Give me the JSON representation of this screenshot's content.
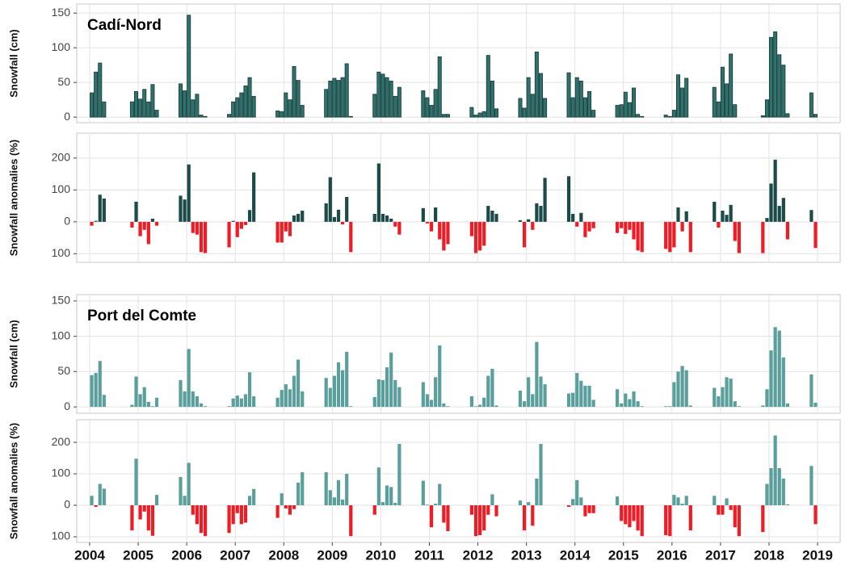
{
  "chart_data": [
    {
      "type": "bar",
      "title": "Cadí-Nord",
      "y_label": "Snowfall (cm)",
      "color": "#2f716c",
      "edgecolor": "#173836",
      "grid": true,
      "categories": [
        "2004",
        "2005",
        "2006",
        "2007",
        "2008",
        "2009",
        "2010",
        "2011",
        "2012",
        "2013",
        "2014",
        "2015",
        "2016",
        "2017",
        "2018",
        "2019"
      ],
      "ylim": [
        -8,
        163
      ],
      "yticks": [
        0,
        50,
        100,
        150
      ],
      "series": [
        {
          "values": [
            null,
            22,
            48,
            4,
            9,
            40,
            33,
            38,
            14,
            27,
            64,
            17,
            3,
            43,
            2,
            35
          ]
        },
        {
          "values": [
            null,
            37,
            38,
            22,
            8,
            52,
            65,
            28,
            3,
            13,
            28,
            18,
            1,
            22,
            25,
            4
          ]
        },
        {
          "values": [
            35,
            26,
            147,
            28,
            35,
            56,
            62,
            17,
            6,
            57,
            57,
            36,
            10,
            72,
            115,
            null
          ]
        },
        {
          "values": [
            65,
            40,
            25,
            35,
            25,
            53,
            57,
            40,
            8,
            33,
            52,
            21,
            61,
            48,
            123,
            null
          ]
        },
        {
          "values": [
            78,
            22,
            33,
            45,
            73,
            57,
            52,
            87,
            89,
            94,
            28,
            42,
            42,
            91,
            90,
            null
          ]
        },
        {
          "values": [
            22,
            47,
            3,
            57,
            53,
            77,
            30,
            4,
            52,
            63,
            37,
            4,
            56,
            18,
            75,
            null
          ]
        },
        {
          "values": [
            null,
            10,
            1,
            30,
            17,
            1,
            43,
            4,
            12,
            27,
            10,
            1,
            null,
            null,
            5,
            null
          ]
        }
      ]
    },
    {
      "type": "bar",
      "y_label": "Snowfall anomalies (%)",
      "color": "#1b4a48",
      "negative_color": "#ee1c25",
      "grid": true,
      "categories": [
        "2004",
        "2005",
        "2006",
        "2007",
        "2008",
        "2009",
        "2010",
        "2011",
        "2012",
        "2013",
        "2014",
        "2015",
        "2016",
        "2017",
        "2018",
        "2019"
      ],
      "ylim": [
        -127,
        278
      ],
      "yticks": [
        {
          "value": -100,
          "label": "100"
        },
        0,
        100,
        200
      ],
      "series": [
        {
          "values": [
            null,
            -18,
            82,
            -80,
            -65,
            58,
            25,
            43,
            -45,
            5,
            143,
            -35,
            -85,
            63,
            -98,
            37
          ]
        },
        {
          "values": [
            null,
            63,
            70,
            3,
            -65,
            140,
            183,
            -5,
            -98,
            -80,
            25,
            -20,
            -95,
            -18,
            12,
            -82
          ]
        },
        {
          "values": [
            -12,
            -45,
            180,
            -48,
            -30,
            15,
            25,
            -30,
            -90,
            8,
            -15,
            -38,
            -80,
            35,
            120,
            null
          ]
        },
        {
          "values": [
            3,
            -25,
            -35,
            -22,
            -45,
            38,
            20,
            45,
            -75,
            -25,
            28,
            -25,
            45,
            22,
            195,
            null
          ]
        },
        {
          "values": [
            85,
            -70,
            -40,
            -10,
            20,
            -8,
            10,
            -55,
            50,
            58,
            -48,
            -55,
            -30,
            53,
            50,
            null
          ]
        },
        {
          "values": [
            73,
            10,
            -95,
            37,
            25,
            78,
            -15,
            -90,
            35,
            50,
            -30,
            -90,
            33,
            -60,
            75,
            null
          ]
        },
        {
          "values": [
            null,
            -12,
            -98,
            155,
            35,
            -95,
            -40,
            -70,
            25,
            138,
            -20,
            -95,
            -95,
            -98,
            -55,
            null
          ]
        }
      ]
    },
    {
      "type": "bar",
      "title": "Port del Comte",
      "y_label": "Snowfall (cm)",
      "color": "#5b9f9d",
      "grid": true,
      "categories": [
        "2004",
        "2005",
        "2006",
        "2007",
        "2008",
        "2009",
        "2010",
        "2011",
        "2012",
        "2013",
        "2014",
        "2015",
        "2016",
        "2017",
        "2018",
        "2019"
      ],
      "ylim": [
        -9,
        159
      ],
      "yticks": [
        0,
        50,
        100,
        150
      ],
      "series": [
        {
          "values": [
            null,
            3,
            38,
            1,
            13,
            41,
            14,
            35,
            15,
            23,
            19,
            25,
            1,
            27,
            2,
            46
          ]
        },
        {
          "values": [
            null,
            43,
            22,
            12,
            24,
            27,
            39,
            18,
            1,
            8,
            20,
            5,
            1,
            15,
            25,
            6
          ]
        },
        {
          "values": [
            45,
            18,
            82,
            16,
            32,
            44,
            38,
            10,
            3,
            42,
            48,
            19,
            35,
            28,
            80,
            null
          ]
        },
        {
          "values": [
            48,
            28,
            22,
            12,
            25,
            63,
            56,
            42,
            13,
            18,
            37,
            11,
            50,
            42,
            113,
            null
          ]
        },
        {
          "values": [
            65,
            7,
            15,
            18,
            44,
            52,
            77,
            87,
            44,
            92,
            30,
            22,
            58,
            40,
            108,
            null
          ]
        },
        {
          "values": [
            17,
            1,
            5,
            49,
            67,
            78,
            38,
            5,
            54,
            43,
            30,
            8,
            52,
            8,
            70,
            null
          ]
        },
        {
          "values": [
            null,
            13,
            1,
            15,
            22,
            1,
            28,
            1,
            2,
            32,
            10,
            1,
            2,
            1,
            5,
            null
          ]
        }
      ]
    },
    {
      "type": "bar",
      "y_label": "Snowfall anomalies (%)",
      "color": "#5b9f9d",
      "negative_color": "#ee1c25",
      "grid": true,
      "categories": [
        "2004",
        "2005",
        "2006",
        "2007",
        "2008",
        "2009",
        "2010",
        "2011",
        "2012",
        "2013",
        "2014",
        "2015",
        "2016",
        "2017",
        "2018",
        "2019"
      ],
      "ylim": [
        -118,
        272
      ],
      "yticks": [
        {
          "value": -100,
          "label": "100"
        },
        0,
        100,
        200
      ],
      "series": [
        {
          "values": [
            null,
            -80,
            90,
            -88,
            -40,
            105,
            -30,
            78,
            -30,
            15,
            -5,
            28,
            -95,
            30,
            -85,
            125
          ]
        },
        {
          "values": [
            null,
            148,
            30,
            -60,
            38,
            48,
            120,
            2,
            -98,
            -80,
            20,
            -50,
            -98,
            -30,
            68,
            -60
          ]
        },
        {
          "values": [
            30,
            -45,
            135,
            -25,
            -10,
            25,
            10,
            -70,
            -95,
            10,
            80,
            -60,
            33,
            -30,
            118,
            null
          ]
        },
        {
          "values": [
            -5,
            -20,
            -30,
            -60,
            -30,
            80,
            63,
            5,
            -80,
            -65,
            25,
            -70,
            25,
            22,
            222,
            null
          ]
        },
        {
          "values": [
            68,
            -80,
            -60,
            -55,
            -12,
            18,
            58,
            68,
            -30,
            85,
            -35,
            -50,
            5,
            -15,
            118,
            null
          ]
        },
        {
          "values": [
            53,
            -97,
            -88,
            30,
            72,
            100,
            8,
            -55,
            35,
            195,
            -25,
            -80,
            30,
            -70,
            85,
            null
          ]
        },
        {
          "values": [
            null,
            33,
            -98,
            52,
            105,
            -98,
            195,
            -82,
            -35,
            null,
            -25,
            -98,
            -80,
            -98,
            3,
            null
          ]
        }
      ]
    }
  ]
}
